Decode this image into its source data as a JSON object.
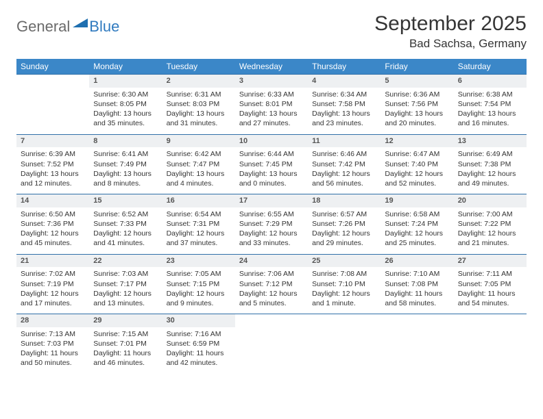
{
  "logo": {
    "general": "General",
    "blue": "Blue"
  },
  "title": "September 2025",
  "location": "Bad Sachsa, Germany",
  "header_bg": "#3b87c8",
  "header_fg": "#ffffff",
  "daynum_bg": "#eef0f2",
  "rule_color": "#2f6fa8",
  "text_color": "#333333",
  "logo_triangle_color": "#1f6fb0",
  "day_names": [
    "Sunday",
    "Monday",
    "Tuesday",
    "Wednesday",
    "Thursday",
    "Friday",
    "Saturday"
  ],
  "weeks": [
    {
      "nums": [
        "",
        "1",
        "2",
        "3",
        "4",
        "5",
        "6"
      ],
      "cells": [
        [],
        [
          "Sunrise: 6:30 AM",
          "Sunset: 8:05 PM",
          "Daylight: 13 hours",
          "and 35 minutes."
        ],
        [
          "Sunrise: 6:31 AM",
          "Sunset: 8:03 PM",
          "Daylight: 13 hours",
          "and 31 minutes."
        ],
        [
          "Sunrise: 6:33 AM",
          "Sunset: 8:01 PM",
          "Daylight: 13 hours",
          "and 27 minutes."
        ],
        [
          "Sunrise: 6:34 AM",
          "Sunset: 7:58 PM",
          "Daylight: 13 hours",
          "and 23 minutes."
        ],
        [
          "Sunrise: 6:36 AM",
          "Sunset: 7:56 PM",
          "Daylight: 13 hours",
          "and 20 minutes."
        ],
        [
          "Sunrise: 6:38 AM",
          "Sunset: 7:54 PM",
          "Daylight: 13 hours",
          "and 16 minutes."
        ]
      ]
    },
    {
      "nums": [
        "7",
        "8",
        "9",
        "10",
        "11",
        "12",
        "13"
      ],
      "cells": [
        [
          "Sunrise: 6:39 AM",
          "Sunset: 7:52 PM",
          "Daylight: 13 hours",
          "and 12 minutes."
        ],
        [
          "Sunrise: 6:41 AM",
          "Sunset: 7:49 PM",
          "Daylight: 13 hours",
          "and 8 minutes."
        ],
        [
          "Sunrise: 6:42 AM",
          "Sunset: 7:47 PM",
          "Daylight: 13 hours",
          "and 4 minutes."
        ],
        [
          "Sunrise: 6:44 AM",
          "Sunset: 7:45 PM",
          "Daylight: 13 hours",
          "and 0 minutes."
        ],
        [
          "Sunrise: 6:46 AM",
          "Sunset: 7:42 PM",
          "Daylight: 12 hours",
          "and 56 minutes."
        ],
        [
          "Sunrise: 6:47 AM",
          "Sunset: 7:40 PM",
          "Daylight: 12 hours",
          "and 52 minutes."
        ],
        [
          "Sunrise: 6:49 AM",
          "Sunset: 7:38 PM",
          "Daylight: 12 hours",
          "and 49 minutes."
        ]
      ]
    },
    {
      "nums": [
        "14",
        "15",
        "16",
        "17",
        "18",
        "19",
        "20"
      ],
      "cells": [
        [
          "Sunrise: 6:50 AM",
          "Sunset: 7:36 PM",
          "Daylight: 12 hours",
          "and 45 minutes."
        ],
        [
          "Sunrise: 6:52 AM",
          "Sunset: 7:33 PM",
          "Daylight: 12 hours",
          "and 41 minutes."
        ],
        [
          "Sunrise: 6:54 AM",
          "Sunset: 7:31 PM",
          "Daylight: 12 hours",
          "and 37 minutes."
        ],
        [
          "Sunrise: 6:55 AM",
          "Sunset: 7:29 PM",
          "Daylight: 12 hours",
          "and 33 minutes."
        ],
        [
          "Sunrise: 6:57 AM",
          "Sunset: 7:26 PM",
          "Daylight: 12 hours",
          "and 29 minutes."
        ],
        [
          "Sunrise: 6:58 AM",
          "Sunset: 7:24 PM",
          "Daylight: 12 hours",
          "and 25 minutes."
        ],
        [
          "Sunrise: 7:00 AM",
          "Sunset: 7:22 PM",
          "Daylight: 12 hours",
          "and 21 minutes."
        ]
      ]
    },
    {
      "nums": [
        "21",
        "22",
        "23",
        "24",
        "25",
        "26",
        "27"
      ],
      "cells": [
        [
          "Sunrise: 7:02 AM",
          "Sunset: 7:19 PM",
          "Daylight: 12 hours",
          "and 17 minutes."
        ],
        [
          "Sunrise: 7:03 AM",
          "Sunset: 7:17 PM",
          "Daylight: 12 hours",
          "and 13 minutes."
        ],
        [
          "Sunrise: 7:05 AM",
          "Sunset: 7:15 PM",
          "Daylight: 12 hours",
          "and 9 minutes."
        ],
        [
          "Sunrise: 7:06 AM",
          "Sunset: 7:12 PM",
          "Daylight: 12 hours",
          "and 5 minutes."
        ],
        [
          "Sunrise: 7:08 AM",
          "Sunset: 7:10 PM",
          "Daylight: 12 hours",
          "and 1 minute."
        ],
        [
          "Sunrise: 7:10 AM",
          "Sunset: 7:08 PM",
          "Daylight: 11 hours",
          "and 58 minutes."
        ],
        [
          "Sunrise: 7:11 AM",
          "Sunset: 7:05 PM",
          "Daylight: 11 hours",
          "and 54 minutes."
        ]
      ]
    },
    {
      "nums": [
        "28",
        "29",
        "30",
        "",
        "",
        "",
        ""
      ],
      "cells": [
        [
          "Sunrise: 7:13 AM",
          "Sunset: 7:03 PM",
          "Daylight: 11 hours",
          "and 50 minutes."
        ],
        [
          "Sunrise: 7:15 AM",
          "Sunset: 7:01 PM",
          "Daylight: 11 hours",
          "and 46 minutes."
        ],
        [
          "Sunrise: 7:16 AM",
          "Sunset: 6:59 PM",
          "Daylight: 11 hours",
          "and 42 minutes."
        ],
        [],
        [],
        [],
        []
      ]
    }
  ]
}
